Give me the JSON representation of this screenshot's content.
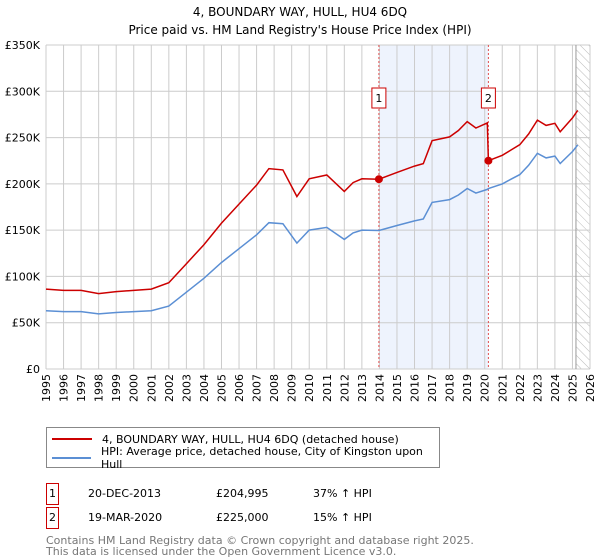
{
  "chart_data": {
    "type": "line",
    "title": "4, BOUNDARY WAY, HULL, HU4 6DQ",
    "subtitle": "Price paid vs. HM Land Registry's House Price Index (HPI)",
    "xlim": [
      1995,
      2026
    ],
    "ylim": [
      0,
      350000
    ],
    "x_ticks": [
      "1995",
      "1996",
      "1997",
      "1998",
      "1999",
      "2000",
      "2001",
      "2002",
      "2003",
      "2004",
      "2005",
      "2006",
      "2007",
      "2008",
      "2009",
      "2010",
      "2011",
      "2012",
      "2013",
      "2014",
      "2015",
      "2016",
      "2017",
      "2018",
      "2019",
      "2020",
      "2021",
      "2022",
      "2023",
      "2024",
      "2025",
      "2026"
    ],
    "y_ticks": [
      {
        "value": 0,
        "label": "£0"
      },
      {
        "value": 50000,
        "label": "£50K"
      },
      {
        "value": 100000,
        "label": "£100K"
      },
      {
        "value": 150000,
        "label": "£150K"
      },
      {
        "value": 200000,
        "label": "£200K"
      },
      {
        "value": 250000,
        "label": "£250K"
      },
      {
        "value": 300000,
        "label": "£300K"
      },
      {
        "value": 350000,
        "label": "£350K"
      }
    ],
    "grid": true,
    "colors": {
      "property": "#cc0000",
      "hpi": "#5b8fd4",
      "shade": "#eef3fd",
      "marker": "#cc0000"
    },
    "shaded_range": [
      2013.97,
      2020.21
    ],
    "forecast_start": 2025.2,
    "series": [
      {
        "name": "4, BOUNDARY WAY, HULL, HU4 6DQ (detached house)",
        "key": "property",
        "x": [
          1995,
          1996,
          1997,
          1998,
          1999,
          2000,
          2001,
          2002,
          2003,
          2004,
          2005,
          2006,
          2007,
          2007.7,
          2008.5,
          2009.3,
          2010,
          2011,
          2012,
          2012.5,
          2013,
          2013.97,
          2015,
          2016,
          2016.5,
          2017,
          2018,
          2018.5,
          2019,
          2019.5,
          2020.15,
          2020.21,
          2021,
          2021.5,
          2022,
          2022.5,
          2023,
          2023.5,
          2024,
          2024.3,
          2025,
          2025.3
        ],
        "y": [
          86300,
          84900,
          84900,
          81500,
          83600,
          84900,
          86300,
          93200,
          113700,
          134300,
          157600,
          178100,
          198700,
          216500,
          215100,
          186300,
          205500,
          209600,
          191800,
          201400,
          205500,
          204995,
          212400,
          219200,
          221900,
          246600,
          250700,
          257600,
          267200,
          260300,
          265800,
          225000,
          230800,
          236600,
          242300,
          253900,
          268900,
          263100,
          265400,
          256200,
          271200,
          279300
        ]
      },
      {
        "name": "HPI: Average price, detached house, City of Kingston upon Hull",
        "key": "hpi",
        "x": [
          1995,
          1996,
          1997,
          1998,
          1999,
          2000,
          2001,
          2002,
          2003,
          2004,
          2005,
          2006,
          2007,
          2007.7,
          2008.5,
          2009.3,
          2010,
          2011,
          2012,
          2012.5,
          2013,
          2013.97,
          2015,
          2016,
          2016.5,
          2017,
          2018,
          2018.5,
          2019,
          2019.5,
          2020.15,
          2020.21,
          2021,
          2021.5,
          2022,
          2022.5,
          2023,
          2023.5,
          2024,
          2024.3,
          2025,
          2025.3
        ],
        "y": [
          63000,
          62000,
          62000,
          59500,
          61000,
          62000,
          63000,
          68000,
          83000,
          98000,
          115000,
          130000,
          145000,
          158000,
          157000,
          136000,
          150000,
          153000,
          140000,
          147000,
          150000,
          149600,
          155000,
          160000,
          162000,
          180000,
          183000,
          188000,
          195000,
          190000,
          194000,
          195000,
          200000,
          205000,
          210000,
          220000,
          233000,
          228000,
          230000,
          222000,
          235000,
          242000
        ]
      }
    ],
    "annotations": [
      {
        "label": "1",
        "x": 2013.97,
        "y": 204995
      },
      {
        "label": "2",
        "x": 2020.21,
        "y": 225000
      }
    ]
  },
  "legend": {
    "property": "4, BOUNDARY WAY, HULL, HU4 6DQ (detached house)",
    "hpi": "HPI: Average price, detached house, City of Kingston upon Hull"
  },
  "transactions": [
    {
      "num": "1",
      "date": "20-DEC-2013",
      "price": "£204,995",
      "pct": "37% ↑ HPI"
    },
    {
      "num": "2",
      "date": "19-MAR-2020",
      "price": "£225,000",
      "pct": "15% ↑ HPI"
    }
  ],
  "footer": {
    "line1": "Contains HM Land Registry data © Crown copyright and database right 2025.",
    "line2": "This data is licensed under the Open Government Licence v3.0."
  }
}
